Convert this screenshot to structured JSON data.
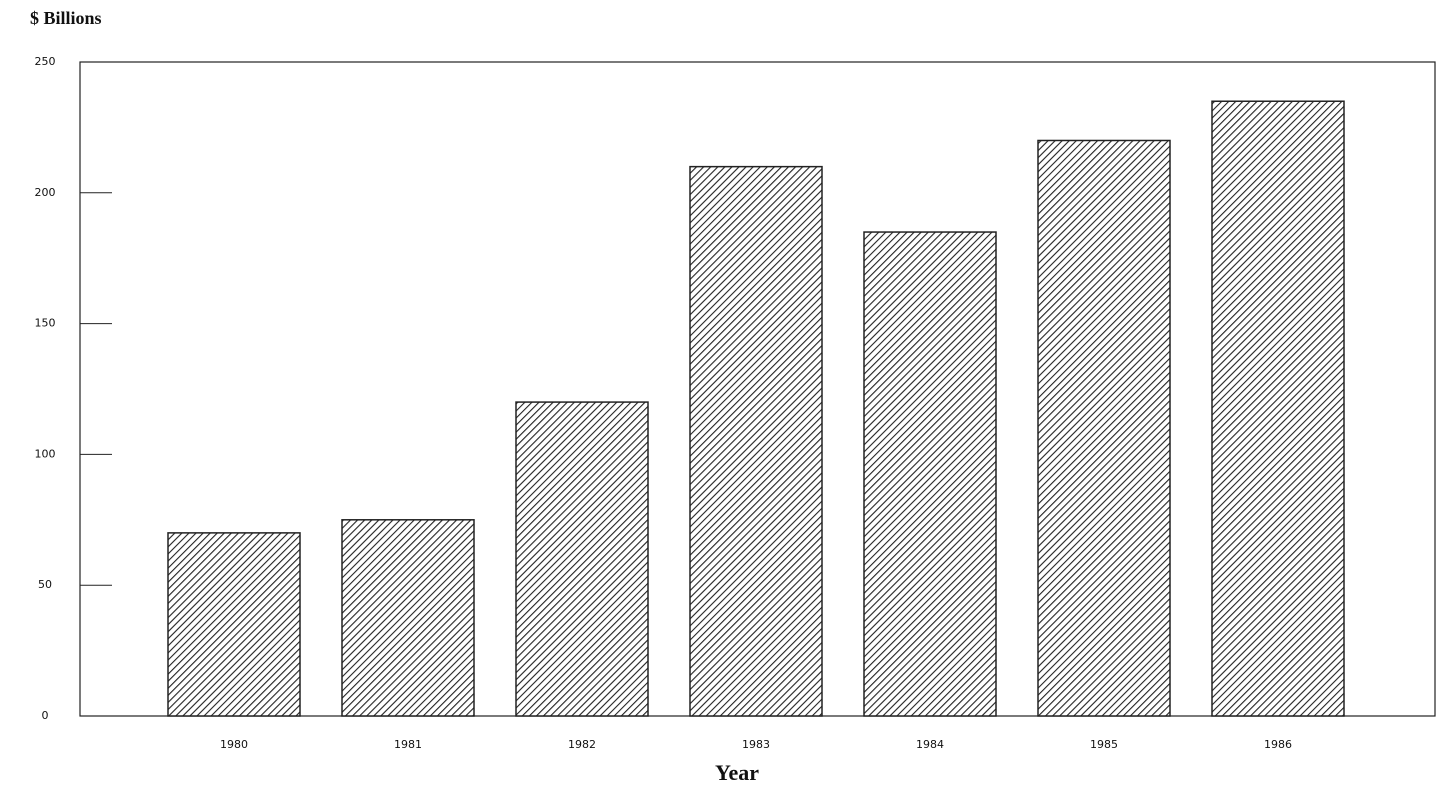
{
  "chart_data": {
    "type": "bar",
    "y_label": "$ Billions",
    "x_label": "Year",
    "categories": [
      "1980",
      "1981",
      "1982",
      "1983",
      "1984",
      "1985",
      "1986"
    ],
    "values": [
      70,
      75,
      120,
      210,
      185,
      220,
      235
    ],
    "color": "#222222",
    "ylim": [
      0,
      250
    ],
    "yticks": [
      0,
      50,
      100,
      150,
      200,
      250
    ]
  }
}
